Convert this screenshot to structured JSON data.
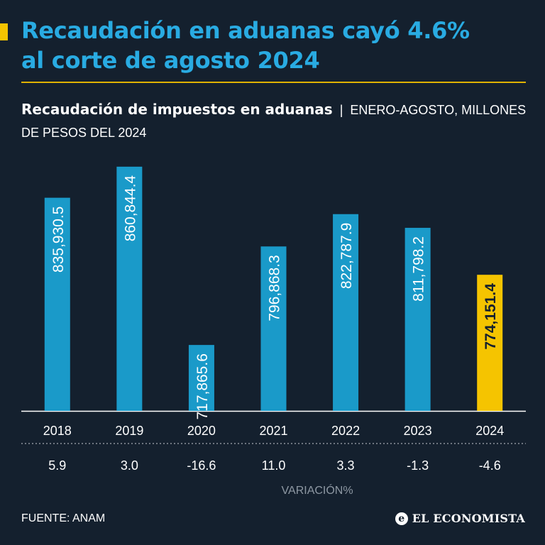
{
  "headline": {
    "line1": "Recaudación en aduanas cayó 4.6%",
    "line2": "al corte de agosto 2024"
  },
  "subtitle": {
    "main": "Recaudación de impuestos en aduanas",
    "separator": "|",
    "units": "ENERO-AGOSTO, MILLONES DE PESOS DEL 2024"
  },
  "colors": {
    "background": "#14202e",
    "bar": "#1a9ac9",
    "highlight": "#f5c400",
    "headline": "#29abe2"
  },
  "chart_data": {
    "type": "bar",
    "title": "Recaudación de impuestos en aduanas",
    "subtitle": "ENERO-AGOSTO, MILLONES DE PESOS DEL 2024",
    "categories": [
      "2018",
      "2019",
      "2020",
      "2021",
      "2022",
      "2023",
      "2024"
    ],
    "values": [
      835930.5,
      860844.4,
      717865.6,
      796868.3,
      822787.9,
      811798.2,
      774151.4
    ],
    "value_labels": [
      "835,930.5",
      "860,844.4",
      "717,865.6",
      "796,868.3",
      "822,787.9",
      "811,798.2",
      "774,151.4"
    ],
    "highlight_category": "2024",
    "variation": [
      "5.9",
      "3.0",
      "-16.6",
      "11.0",
      "3.3",
      "-1.3",
      "-4.6"
    ],
    "variation_label": "VARIACIÓN%",
    "ylim": [
      665000,
      875000
    ],
    "grid": false,
    "legend": "none"
  },
  "footer": {
    "source": "FUENTE: ANAM",
    "logo_text": "EL ECONOMISTA",
    "logo_icon": "e-logo-icon"
  }
}
